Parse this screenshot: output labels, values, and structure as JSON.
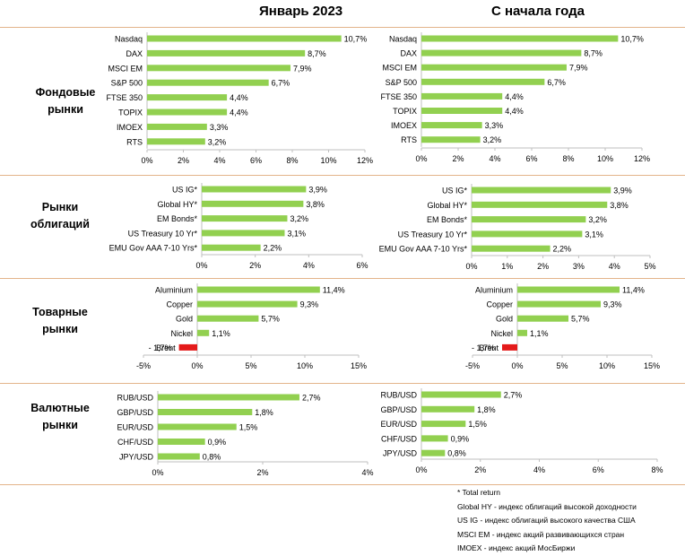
{
  "titles": {
    "left": "Январь 2023",
    "right": "С начала года"
  },
  "colors": {
    "positive": "#92d050",
    "negative": "#e41a1a",
    "axis": "#bfbfbf",
    "separator": "#e3b48a"
  },
  "sections": [
    {
      "label_line1": "Фондовые",
      "label_line2": "рынки"
    },
    {
      "label_line1": "Рынки",
      "label_line2": "облигаций"
    },
    {
      "label_line1": "Товарные",
      "label_line2": "рынки"
    },
    {
      "label_line1": "Валютные",
      "label_line2": "рынки"
    }
  ],
  "footnotes": [
    "* Total return",
    "Global HY - индекс облигаций высокой доходности",
    "US IG - индекс облигаций высокого качества США",
    "MSCI EM - индекс акций развивающихся стран",
    "IMOEX - индекс акций МосБиржи"
  ],
  "chart_data": [
    {
      "type": "bar",
      "orientation": "horizontal",
      "panel": "Январь 2023",
      "group": "Фондовые рынки",
      "categories": [
        "Nasdaq",
        "DAX",
        "MSCI EM",
        "S&P 500",
        "FTSE 350",
        "TOPIX",
        "IMOEX",
        "RTS"
      ],
      "values": [
        10.7,
        8.7,
        7.9,
        6.7,
        4.4,
        4.4,
        3.3,
        3.2
      ],
      "labels": [
        "10,7%",
        "8,7%",
        "7,9%",
        "6,7%",
        "4,4%",
        "4,4%",
        "3,3%",
        "3,2%"
      ],
      "xlim": [
        0,
        12
      ],
      "ticks": [
        "0%",
        "2%",
        "4%",
        "6%",
        "8%",
        "10%",
        "12%"
      ]
    },
    {
      "type": "bar",
      "orientation": "horizontal",
      "panel": "С начала года",
      "group": "Фондовые рынки",
      "categories": [
        "Nasdaq",
        "DAX",
        "MSCI EM",
        "S&P 500",
        "FTSE 350",
        "TOPIX",
        "IMOEX",
        "RTS"
      ],
      "values": [
        10.7,
        8.7,
        7.9,
        6.7,
        4.4,
        4.4,
        3.3,
        3.2
      ],
      "labels": [
        "10,7%",
        "8,7%",
        "7,9%",
        "6,7%",
        "4,4%",
        "4,4%",
        "3,3%",
        "3,2%"
      ],
      "xlim": [
        0,
        12
      ],
      "ticks": [
        "0%",
        "2%",
        "4%",
        "6%",
        "8%",
        "10%",
        "12%"
      ]
    },
    {
      "type": "bar",
      "orientation": "horizontal",
      "panel": "Январь 2023",
      "group": "Рынки облигаций",
      "categories": [
        "US IG*",
        "Global HY*",
        "EM Bonds*",
        "US Treasury 10 Yr*",
        "EMU Gov AAA 7-10 Yrs*"
      ],
      "values": [
        3.9,
        3.8,
        3.2,
        3.1,
        2.2
      ],
      "labels": [
        "3,9%",
        "3,8%",
        "3,2%",
        "3,1%",
        "2,2%"
      ],
      "xlim": [
        0,
        6
      ],
      "ticks": [
        "0%",
        "2%",
        "4%",
        "6%"
      ]
    },
    {
      "type": "bar",
      "orientation": "horizontal",
      "panel": "С начала года",
      "group": "Рынки облигаций",
      "categories": [
        "US IG*",
        "Global HY*",
        "EM Bonds*",
        "US Treasury 10 Yr*",
        "EMU Gov AAA 7-10 Yrs*"
      ],
      "values": [
        3.9,
        3.8,
        3.2,
        3.1,
        2.2
      ],
      "labels": [
        "3,9%",
        "3,8%",
        "3,2%",
        "3,1%",
        "2,2%"
      ],
      "xlim": [
        0,
        5
      ],
      "ticks": [
        "0%",
        "1%",
        "2%",
        "3%",
        "4%",
        "5%"
      ]
    },
    {
      "type": "bar",
      "orientation": "horizontal",
      "panel": "Январь 2023",
      "group": "Товарные рынки",
      "categories": [
        "Aluminium",
        "Copper",
        "Gold",
        "Nickel",
        "Brent"
      ],
      "values": [
        11.4,
        9.3,
        5.7,
        1.1,
        -1.7
      ],
      "labels": [
        "11,4%",
        "9,3%",
        "5,7%",
        "1,1%",
        "- 1,7%"
      ],
      "xlim": [
        -5,
        15
      ],
      "ticks": [
        "-5%",
        "0%",
        "5%",
        "10%",
        "15%"
      ]
    },
    {
      "type": "bar",
      "orientation": "horizontal",
      "panel": "С начала года",
      "group": "Товарные рынки",
      "categories": [
        "Aluminium",
        "Copper",
        "Gold",
        "Nickel",
        "Brent"
      ],
      "values": [
        11.4,
        9.3,
        5.7,
        1.1,
        -1.7
      ],
      "labels": [
        "11,4%",
        "9,3%",
        "5,7%",
        "1,1%",
        "- 1,7%"
      ],
      "xlim": [
        -5,
        15
      ],
      "ticks": [
        "-5%",
        "0%",
        "5%",
        "10%",
        "15%"
      ]
    },
    {
      "type": "bar",
      "orientation": "horizontal",
      "panel": "Январь 2023",
      "group": "Валютные рынки",
      "categories": [
        "RUB/USD",
        "GBP/USD",
        "EUR/USD",
        "CHF/USD",
        "JPY/USD"
      ],
      "values": [
        2.7,
        1.8,
        1.5,
        0.9,
        0.8
      ],
      "labels": [
        "2,7%",
        "1,8%",
        "1,5%",
        "0,9%",
        "0,8%"
      ],
      "xlim": [
        0,
        4
      ],
      "ticks": [
        "0%",
        "2%",
        "4%"
      ]
    },
    {
      "type": "bar",
      "orientation": "horizontal",
      "panel": "С начала года",
      "group": "Валютные рынки",
      "categories": [
        "RUB/USD",
        "GBP/USD",
        "EUR/USD",
        "CHF/USD",
        "JPY/USD"
      ],
      "values": [
        2.7,
        1.8,
        1.5,
        0.9,
        0.8
      ],
      "labels": [
        "2,7%",
        "1,8%",
        "1,5%",
        "0,9%",
        "0,8%"
      ],
      "xlim": [
        0,
        8
      ],
      "ticks": [
        "0%",
        "2%",
        "4%",
        "6%",
        "8%"
      ]
    }
  ]
}
